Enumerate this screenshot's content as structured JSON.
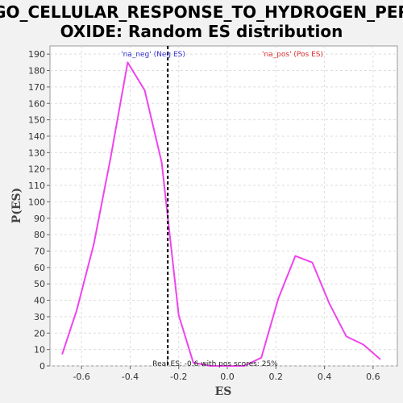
{
  "chart_data": {
    "type": "line",
    "title_lines": [
      "GO_CELLULAR_RESPONSE_TO_HYDROGEN_PER",
      "OXIDE: Random ES distribution"
    ],
    "xlabel": "ES",
    "ylabel": "P(ES)",
    "xlim": [
      -0.73,
      0.7
    ],
    "ylim": [
      0,
      195
    ],
    "xticks": [
      -0.6,
      -0.4,
      -0.2,
      0.0,
      0.2,
      0.4,
      0.6
    ],
    "xtick_labels": [
      "-0.6",
      "-0.4",
      "-0.2",
      "0.0",
      "0.2",
      "0.4",
      "0.6"
    ],
    "yticks": [
      0,
      10,
      20,
      30,
      40,
      50,
      60,
      70,
      80,
      90,
      100,
      110,
      120,
      130,
      140,
      150,
      160,
      170,
      180,
      190
    ],
    "ytick_labels": [
      "0",
      "10",
      "20",
      "30",
      "40",
      "50",
      "60",
      "70",
      "80",
      "90",
      "100",
      "110",
      "120",
      "130",
      "140",
      "150",
      "160",
      "170",
      "180",
      "190"
    ],
    "grid": true,
    "series": [
      {
        "color": "#ee44ee",
        "x": [
          -0.68,
          -0.62,
          -0.55,
          -0.48,
          -0.41,
          -0.34,
          -0.27,
          -0.2,
          -0.14,
          -0.07,
          0.0,
          0.07,
          0.14,
          0.21,
          0.28,
          0.35,
          0.42,
          0.49,
          0.56,
          0.63
        ],
        "y": [
          7,
          34,
          74,
          127,
          185,
          168,
          124,
          31,
          2,
          0,
          0,
          0,
          5,
          41,
          67,
          63,
          38,
          18,
          13,
          4
        ]
      }
    ],
    "vline": {
      "x": -0.245,
      "style": "dashed",
      "color": "#000000"
    },
    "annotations": {
      "neg": {
        "text": "'na_neg' (Neg ES)",
        "color": "#3333cc"
      },
      "pos": {
        "text": "'na_pos' (Pos ES)",
        "color": "#dd3333"
      },
      "bottom": {
        "text": "Real ES: -0.6 with pos scores: 25%",
        "color": "#222222"
      }
    }
  }
}
